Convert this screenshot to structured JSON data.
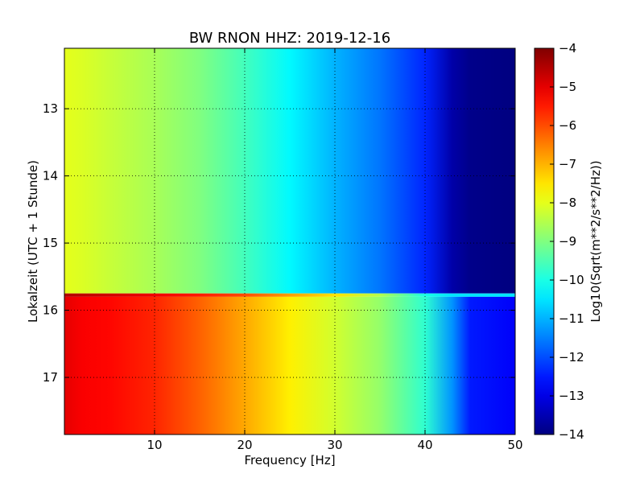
{
  "chart_data": {
    "type": "heatmap",
    "title": "BW RNON HHZ: 2019-12-16",
    "xlabel": "Frequency [Hz]",
    "ylabel": "Lokalzeit (UTC + 1 Stunde)",
    "colorbar_label": "Log10(Sqrt(m**2/s**2/Hz))",
    "xlim": [
      0,
      50
    ],
    "ylim": [
      12.1,
      17.85
    ],
    "y_inverted": true,
    "clim": [
      -14,
      -4
    ],
    "colormap": "jet",
    "grid": true,
    "x_ticks": [
      10,
      20,
      30,
      40,
      50
    ],
    "y_ticks": [
      13,
      14,
      15,
      16,
      17
    ],
    "colorbar_ticks": [
      -4,
      -5,
      -6,
      -7,
      -8,
      -9,
      -10,
      -11,
      -12,
      -13,
      -14
    ],
    "frequency_profile_hz": [
      0,
      2,
      5,
      10,
      15,
      20,
      25,
      30,
      35,
      40,
      43,
      45,
      50
    ],
    "series": [
      {
        "time_range": [
          12.1,
          15.75
        ],
        "values": [
          -8.0,
          -8.1,
          -8.3,
          -8.6,
          -9.0,
          -9.6,
          -10.3,
          -11.0,
          -11.6,
          -12.4,
          -13.6,
          -13.9,
          -14.0
        ]
      },
      {
        "time_range": [
          15.75,
          15.8
        ],
        "values": [
          -4.5,
          -4.6,
          -4.8,
          -5.1,
          -5.5,
          -6.0,
          -6.8,
          -7.5,
          -8.5,
          -10.0,
          -10.5,
          -10.5,
          -10.5
        ]
      },
      {
        "time_range": [
          15.8,
          17.85
        ],
        "values": [
          -5.0,
          -5.2,
          -5.3,
          -5.6,
          -6.2,
          -6.9,
          -7.6,
          -8.2,
          -8.8,
          -9.8,
          -11.3,
          -12.5,
          -12.8
        ]
      }
    ]
  }
}
